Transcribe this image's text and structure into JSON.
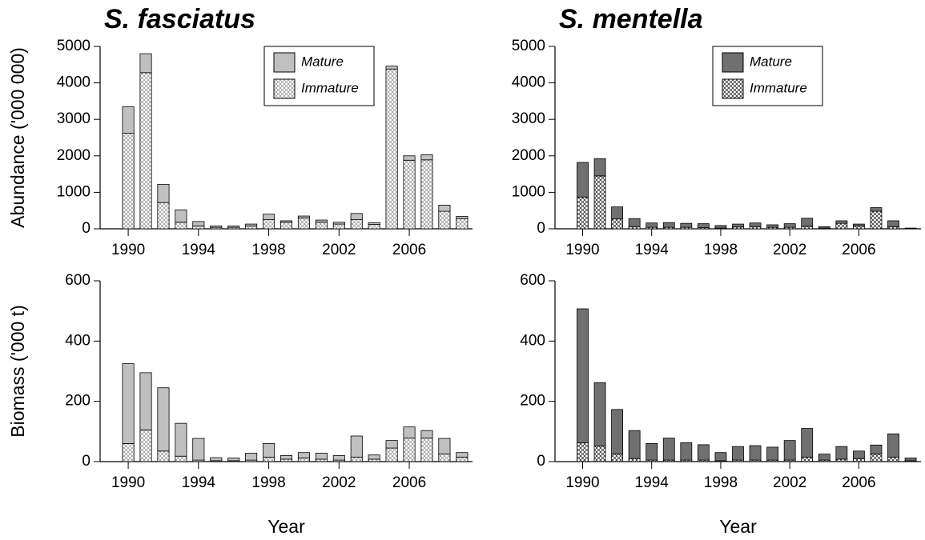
{
  "chart_data": [
    {
      "type": "bar",
      "stacked": true,
      "title": "S. fasciatus",
      "y_label": "Abundance ('000 000)",
      "x": [
        1990,
        1991,
        1992,
        1993,
        1994,
        1995,
        1996,
        1997,
        1998,
        1999,
        2000,
        2001,
        2002,
        2003,
        2004,
        2005,
        2006,
        2007,
        2008,
        2009
      ],
      "series": [
        {
          "name": "Immature",
          "color": "#9a9a9a",
          "hatch": true,
          "values": [
            2620,
            4280,
            720,
            180,
            80,
            40,
            40,
            80,
            250,
            180,
            300,
            180,
            130,
            250,
            120,
            4380,
            1880,
            1890,
            480,
            280
          ]
        },
        {
          "name": "Mature",
          "color": "#c0c0c0",
          "hatch": false,
          "values": [
            730,
            520,
            500,
            340,
            120,
            40,
            40,
            50,
            150,
            40,
            50,
            60,
            50,
            170,
            50,
            80,
            120,
            140,
            170,
            60
          ]
        }
      ],
      "xlim": [
        1988.4,
        2009.6
      ],
      "xticks": [
        1990,
        1994,
        1998,
        2002,
        2006
      ],
      "ylim": [
        0,
        5000
      ],
      "yticks": [
        0,
        1000,
        2000,
        3000,
        4000,
        5000
      ],
      "legend": "upper right"
    },
    {
      "type": "bar",
      "stacked": true,
      "title": "S. mentella",
      "x": [
        1990,
        1991,
        1992,
        1993,
        1994,
        1995,
        1996,
        1997,
        1998,
        1999,
        2000,
        2001,
        2002,
        2003,
        2004,
        2005,
        2006,
        2007,
        2008,
        2009
      ],
      "series": [
        {
          "name": "Immature",
          "color": "#303030",
          "hatch": true,
          "values": [
            870,
            1450,
            270,
            60,
            40,
            40,
            40,
            30,
            20,
            50,
            60,
            40,
            40,
            70,
            20,
            150,
            80,
            480,
            60,
            10
          ]
        },
        {
          "name": "Mature",
          "color": "#707070",
          "hatch": false,
          "values": [
            950,
            470,
            330,
            220,
            120,
            130,
            110,
            110,
            70,
            80,
            100,
            70,
            100,
            220,
            40,
            70,
            50,
            100,
            160,
            10
          ]
        }
      ],
      "xlim": [
        1988.4,
        2009.6
      ],
      "xticks": [
        1990,
        1994,
        1998,
        2002,
        2006
      ],
      "ylim": [
        0,
        5000
      ],
      "yticks": [
        0,
        1000,
        2000,
        3000,
        4000,
        5000
      ],
      "legend": "upper right"
    },
    {
      "type": "bar",
      "stacked": true,
      "y_label": "Biomass ('000 t)",
      "x_label": "Year",
      "x": [
        1990,
        1991,
        1992,
        1993,
        1994,
        1995,
        1996,
        1997,
        1998,
        1999,
        2000,
        2001,
        2002,
        2003,
        2004,
        2005,
        2006,
        2007,
        2008,
        2009
      ],
      "series": [
        {
          "name": "Immature",
          "color": "#9a9a9a",
          "hatch": true,
          "values": [
            60,
            105,
            35,
            18,
            5,
            3,
            3,
            5,
            15,
            8,
            12,
            8,
            5,
            15,
            8,
            45,
            78,
            78,
            25,
            15
          ]
        },
        {
          "name": "Mature",
          "color": "#c0c0c0",
          "hatch": false,
          "values": [
            265,
            190,
            210,
            109,
            72,
            10,
            9,
            23,
            45,
            12,
            18,
            20,
            15,
            70,
            14,
            25,
            37,
            25,
            52,
            15
          ]
        }
      ],
      "xlim": [
        1988.4,
        2009.6
      ],
      "xticks": [
        1990,
        1994,
        1998,
        2002,
        2006
      ],
      "ylim": [
        0,
        600
      ],
      "yticks": [
        0,
        200,
        400,
        600
      ]
    },
    {
      "type": "bar",
      "stacked": true,
      "x_label": "Year",
      "x": [
        1990,
        1991,
        1992,
        1993,
        1994,
        1995,
        1996,
        1997,
        1998,
        1999,
        2000,
        2001,
        2002,
        2003,
        2004,
        2005,
        2006,
        2007,
        2008,
        2009
      ],
      "series": [
        {
          "name": "Immature",
          "color": "#303030",
          "hatch": true,
          "values": [
            62,
            52,
            25,
            10,
            5,
            5,
            5,
            5,
            3,
            5,
            5,
            5,
            5,
            15,
            5,
            8,
            10,
            25,
            15,
            3
          ]
        },
        {
          "name": "Mature",
          "color": "#707070",
          "hatch": false,
          "values": [
            445,
            210,
            148,
            93,
            55,
            73,
            58,
            51,
            27,
            45,
            48,
            43,
            65,
            95,
            20,
            42,
            25,
            30,
            77,
            9
          ]
        }
      ],
      "xlim": [
        1988.4,
        2009.6
      ],
      "xticks": [
        1990,
        1994,
        1998,
        2002,
        2006
      ],
      "ylim": [
        0,
        600
      ],
      "yticks": [
        0,
        200,
        400,
        600
      ]
    }
  ]
}
